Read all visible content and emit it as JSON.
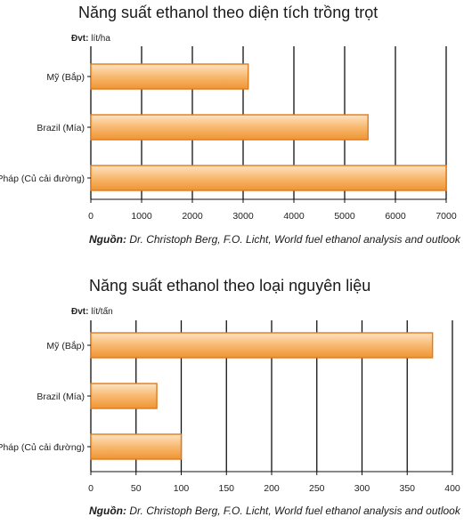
{
  "chart_data": [
    {
      "type": "bar",
      "orientation": "horizontal",
      "title": "Năng suất ethanol theo diện tích trồng trọt",
      "unit_prefix": "Đvt:",
      "unit": "lít/ha",
      "categories": [
        "Mỹ (Bắp)",
        "Brazil (Mía)",
        "Pháp (Củ cải đường)"
      ],
      "values": [
        3100,
        5460,
        7000
      ],
      "xlim": [
        0,
        7000
      ],
      "ticks": [
        0,
        1000,
        2000,
        3000,
        4000,
        5000,
        6000,
        7000
      ],
      "grid": true,
      "source_prefix": "Nguồn:",
      "source": "Dr. Christoph Berg, F.O. Licht, World fuel ethanol analysis and outlook"
    },
    {
      "type": "bar",
      "orientation": "horizontal",
      "title": "Năng suất ethanol theo loại nguyên liệu",
      "unit_prefix": "Đvt:",
      "unit": "lít/tấn",
      "categories": [
        "Mỹ (Bắp)",
        "Brazil (Mía)",
        "Pháp (Củ cải đường)"
      ],
      "values": [
        378,
        73,
        100
      ],
      "xlim": [
        0,
        400
      ],
      "ticks": [
        0,
        50,
        100,
        150,
        200,
        250,
        300,
        350,
        400
      ],
      "grid": true,
      "source_prefix": "Nguồn:",
      "source": "Dr. Christoph Berg, F.O. Licht, World fuel ethanol analysis and outlook"
    }
  ],
  "colors": {
    "bar_fill_light": "#fde3c2",
    "bar_fill_mid": "#f8b870",
    "bar_fill_dark": "#ef9533",
    "bar_stroke": "#e07a1c",
    "grid": "#111111"
  }
}
